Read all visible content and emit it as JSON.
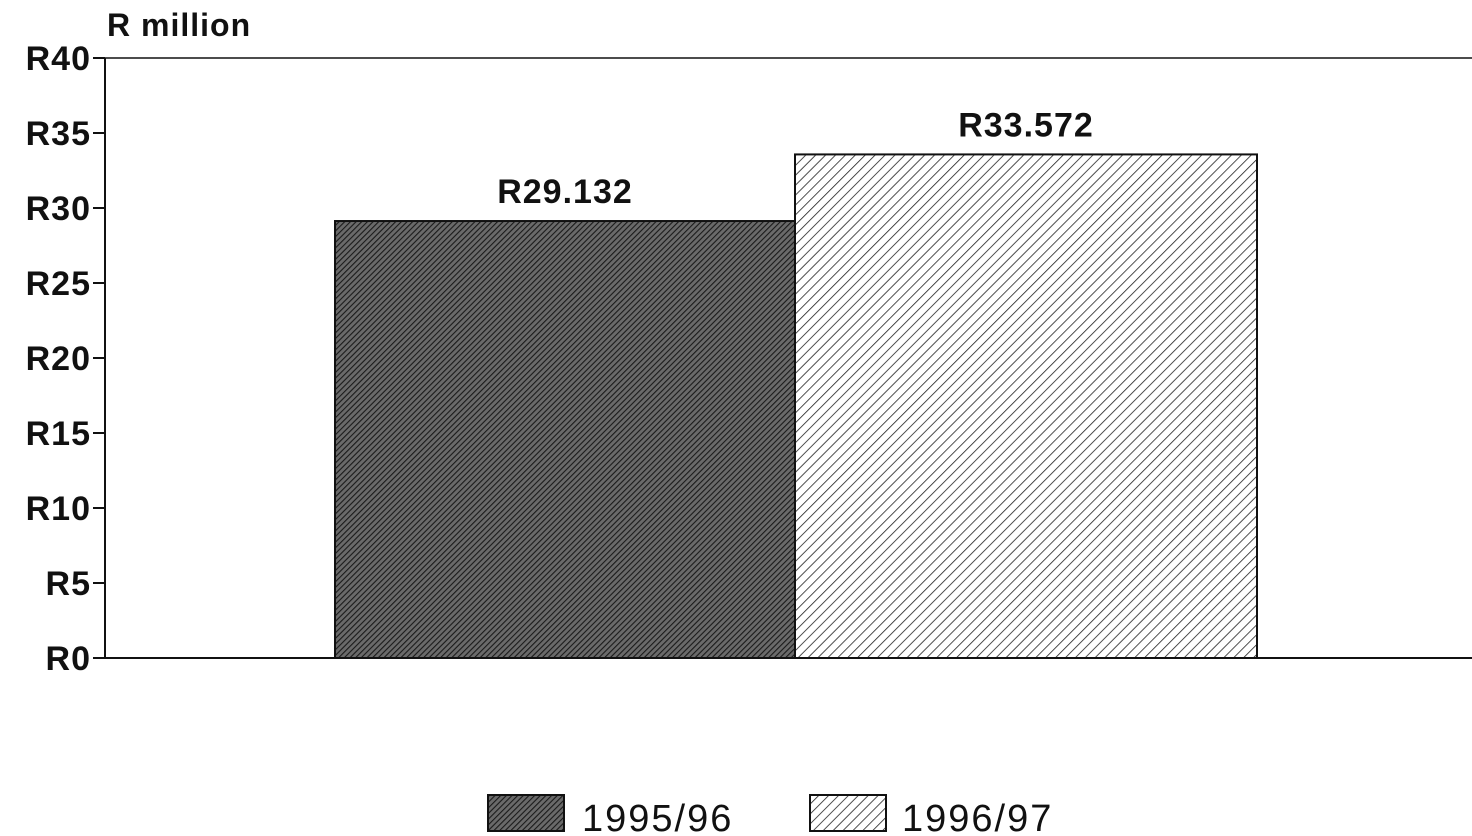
{
  "chart_data": {
    "type": "bar",
    "title": "",
    "ylabel": "R million",
    "xlabel": "",
    "categories": [
      "1995/96",
      "1996/97"
    ],
    "values": [
      29.132,
      33.572
    ],
    "data_labels": [
      "R29.132",
      "R33.572"
    ],
    "ylim": [
      0,
      40
    ],
    "yticks": [
      0,
      5,
      10,
      15,
      20,
      25,
      30,
      35,
      40
    ],
    "ytick_labels": [
      "R0",
      "R5",
      "R10",
      "R15",
      "R20",
      "R25",
      "R30",
      "R35",
      "R40"
    ],
    "legend": {
      "position": "bottom-center",
      "entries": [
        {
          "label": "1995/96",
          "pattern": "dense-hatch-dark"
        },
        {
          "label": "1996/97",
          "pattern": "diagonal-hatch-light"
        }
      ]
    },
    "grid": false
  },
  "colors": {
    "ink": "#111111",
    "background": "#ffffff",
    "bar_dark": "#555555"
  }
}
